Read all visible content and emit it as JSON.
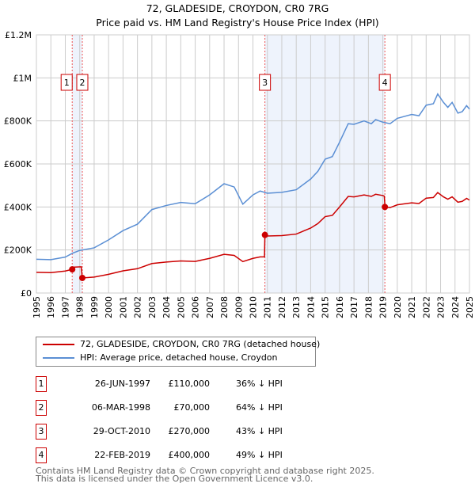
{
  "chart_data": {
    "type": "line",
    "title": "72, GLADESIDE, CROYDON, CR0 7RG",
    "subtitle": "Price paid vs. HM Land Registry's House Price Index (HPI)",
    "xlim": [
      1995,
      2025
    ],
    "ylim": [
      0,
      1200000
    ],
    "x_ticks": [
      "1995",
      "1996",
      "1997",
      "1998",
      "1999",
      "2000",
      "2001",
      "2002",
      "2003",
      "2004",
      "2005",
      "2006",
      "2007",
      "2008",
      "2009",
      "2010",
      "2011",
      "2012",
      "2013",
      "2014",
      "2015",
      "2016",
      "2017",
      "2018",
      "2019",
      "2020",
      "2021",
      "2022",
      "2023",
      "2024",
      "2025"
    ],
    "y_ticks": [
      {
        "v": 0,
        "label": "£0"
      },
      {
        "v": 200000,
        "label": "£200K"
      },
      {
        "v": 400000,
        "label": "£400K"
      },
      {
        "v": 600000,
        "label": "£600K"
      },
      {
        "v": 800000,
        "label": "£800K"
      },
      {
        "v": 1000000,
        "label": "£1M"
      },
      {
        "v": 1200000,
        "label": "£1.2M"
      }
    ],
    "grid": true,
    "series": [
      {
        "name": "72, GLADESIDE, CROYDON, CR0 7RG (detached house)",
        "color": "#cc0000",
        "points": [
          [
            1995,
            96000
          ],
          [
            1996,
            95000
          ],
          [
            1997,
            102000
          ],
          [
            1997.48,
            110000
          ],
          [
            1997.55,
            120000
          ],
          [
            1998.1,
            122000
          ],
          [
            1998.18,
            70000
          ],
          [
            1999,
            74000
          ],
          [
            2000,
            87000
          ],
          [
            2001,
            103000
          ],
          [
            2002,
            113000
          ],
          [
            2003,
            137000
          ],
          [
            2004,
            144000
          ],
          [
            2005,
            149000
          ],
          [
            2006,
            147000
          ],
          [
            2007,
            161000
          ],
          [
            2008,
            180000
          ],
          [
            2008.7,
            175000
          ],
          [
            2009.3,
            146000
          ],
          [
            2010,
            161000
          ],
          [
            2010.5,
            168000
          ],
          [
            2010.8,
            168000
          ],
          [
            2010.83,
            270000
          ],
          [
            2011,
            265000
          ],
          [
            2012,
            267000
          ],
          [
            2013,
            274000
          ],
          [
            2014,
            302000
          ],
          [
            2014.5,
            323000
          ],
          [
            2015,
            355000
          ],
          [
            2015.5,
            361000
          ],
          [
            2016,
            400000
          ],
          [
            2016.6,
            449000
          ],
          [
            2017,
            447000
          ],
          [
            2017.7,
            456000
          ],
          [
            2018.2,
            449000
          ],
          [
            2018.5,
            459000
          ],
          [
            2019,
            453000
          ],
          [
            2019.1,
            450000
          ],
          [
            2019.15,
            400000
          ],
          [
            2019.5,
            397000
          ],
          [
            2020,
            410000
          ],
          [
            2021,
            419000
          ],
          [
            2021.5,
            416000
          ],
          [
            2022,
            441000
          ],
          [
            2022.5,
            444000
          ],
          [
            2022.8,
            467000
          ],
          [
            2023.2,
            447000
          ],
          [
            2023.5,
            436000
          ],
          [
            2023.8,
            447000
          ],
          [
            2024.2,
            422000
          ],
          [
            2024.5,
            426000
          ],
          [
            2024.8,
            440000
          ],
          [
            2025,
            432000
          ]
        ]
      },
      {
        "name": "HPI: Average price, detached house, Croydon",
        "color": "#5b8fd4",
        "points": [
          [
            1995,
            157000
          ],
          [
            1996,
            155000
          ],
          [
            1997,
            167000
          ],
          [
            1997.5,
            185000
          ],
          [
            1998,
            198000
          ],
          [
            1999,
            210000
          ],
          [
            2000,
            247000
          ],
          [
            2001,
            290000
          ],
          [
            2002,
            320000
          ],
          [
            2003,
            388000
          ],
          [
            2004,
            407000
          ],
          [
            2005,
            421000
          ],
          [
            2006,
            415000
          ],
          [
            2007,
            456000
          ],
          [
            2008,
            508000
          ],
          [
            2008.7,
            493000
          ],
          [
            2009.3,
            413000
          ],
          [
            2010,
            456000
          ],
          [
            2010.5,
            474000
          ],
          [
            2011,
            464000
          ],
          [
            2012,
            468000
          ],
          [
            2013,
            480000
          ],
          [
            2014,
            530000
          ],
          [
            2014.5,
            566000
          ],
          [
            2015,
            622000
          ],
          [
            2015.5,
            634000
          ],
          [
            2016,
            701000
          ],
          [
            2016.6,
            787000
          ],
          [
            2017,
            784000
          ],
          [
            2017.7,
            800000
          ],
          [
            2018.2,
            787000
          ],
          [
            2018.5,
            806000
          ],
          [
            2019,
            794000
          ],
          [
            2019.5,
            787000
          ],
          [
            2020,
            812000
          ],
          [
            2021,
            830000
          ],
          [
            2021.5,
            824000
          ],
          [
            2022,
            873000
          ],
          [
            2022.5,
            880000
          ],
          [
            2022.8,
            925000
          ],
          [
            2023.2,
            886000
          ],
          [
            2023.5,
            863000
          ],
          [
            2023.8,
            886000
          ],
          [
            2024.2,
            836000
          ],
          [
            2024.5,
            843000
          ],
          [
            2024.8,
            871000
          ],
          [
            2025,
            855000
          ]
        ]
      }
    ],
    "sales": [
      {
        "n": "1",
        "x": 1997.48,
        "price": 110000,
        "date": "26-JUN-1997",
        "price_label": "£110,000",
        "hpi": "36% ↓ HPI"
      },
      {
        "n": "2",
        "x": 1998.18,
        "price": 70000,
        "date": "06-MAR-1998",
        "price_label": "£70,000",
        "hpi": "64% ↓ HPI"
      },
      {
        "n": "3",
        "x": 2010.83,
        "price": 270000,
        "date": "29-OCT-2010",
        "price_label": "£270,000",
        "hpi": "43% ↓ HPI"
      },
      {
        "n": "4",
        "x": 2019.14,
        "price": 400000,
        "date": "22-FEB-2019",
        "price_label": "£400,000",
        "hpi": "49% ↓ HPI"
      }
    ],
    "shaded": [
      [
        1997.48,
        1998.18
      ],
      [
        2010.83,
        2019.14
      ]
    ],
    "legend_position": "bottom"
  },
  "footer": {
    "line1": "Contains HM Land Registry data © Crown copyright and database right 2025.",
    "line2": "This data is licensed under the Open Government Licence v3.0."
  }
}
